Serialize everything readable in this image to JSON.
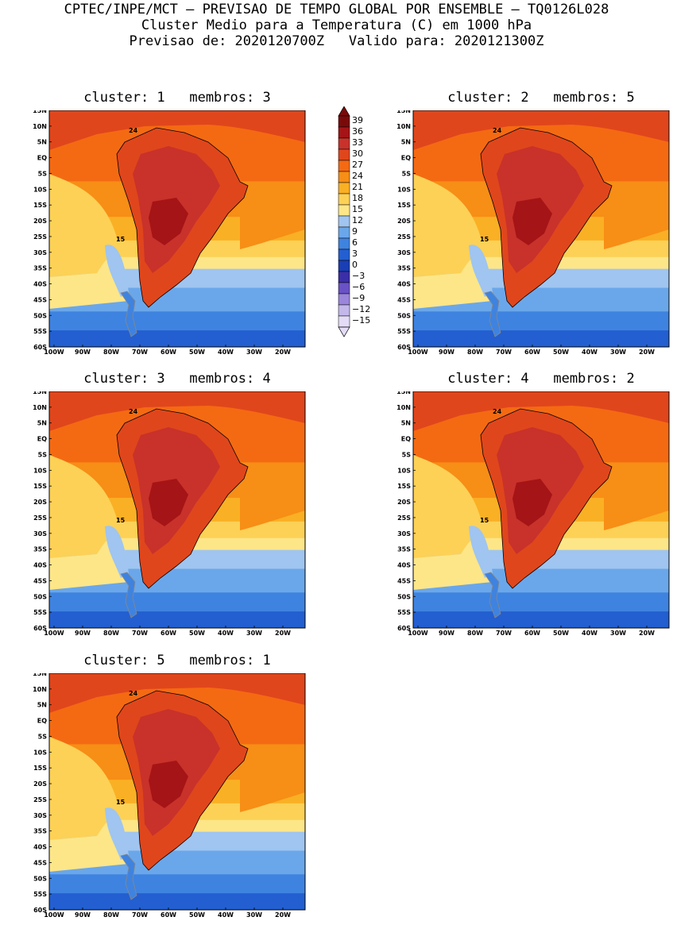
{
  "header": {
    "line1": "CPTEC/INPE/MCT – PREVISAO DE TEMPO GLOBAL POR ENSEMBLE – TQ0126L028",
    "line2": "Cluster Medio para a Temperatura (C) em 1000 hPa",
    "line3": "Previsao de: 2020120700Z   Valido para: 2020121300Z"
  },
  "axes": {
    "lat_labels": [
      "15N",
      "10N",
      "5N",
      "EQ",
      "5S",
      "10S",
      "15S",
      "20S",
      "25S",
      "30S",
      "35S",
      "40S",
      "45S",
      "50S",
      "55S",
      "60S"
    ],
    "lon_labels": [
      "100W",
      "90W",
      "80W",
      "70W",
      "60W",
      "50W",
      "40W",
      "30W",
      "20W"
    ]
  },
  "colorbar": {
    "labels": [
      "39",
      "36",
      "33",
      "30",
      "27",
      "24",
      "21",
      "18",
      "15",
      "12",
      "9",
      "6",
      "3",
      "0",
      "−3",
      "−6",
      "−9",
      "−12",
      "−15"
    ],
    "colors": [
      "#7a0a0a",
      "#a51416",
      "#c8322a",
      "#e0461c",
      "#f46a12",
      "#f78e16",
      "#fab024",
      "#fcd156",
      "#fde688",
      "#9fc5f0",
      "#6aa7ea",
      "#3f83e0",
      "#235fd0",
      "#1a3eb4",
      "#3a2fa8",
      "#6a52c6",
      "#9a86da",
      "#c4b8ea",
      "#e4dcf6"
    ]
  },
  "contour_labels": {
    "c24": "24",
    "c15": "15"
  },
  "panels": [
    {
      "title": "cluster: 1   membros: 3"
    },
    {
      "title": "cluster: 2   membros: 5"
    },
    {
      "title": "cluster: 3   membros: 4"
    },
    {
      "title": "cluster: 4   membros: 2"
    },
    {
      "title": "cluster: 5   membros: 1"
    }
  ]
}
